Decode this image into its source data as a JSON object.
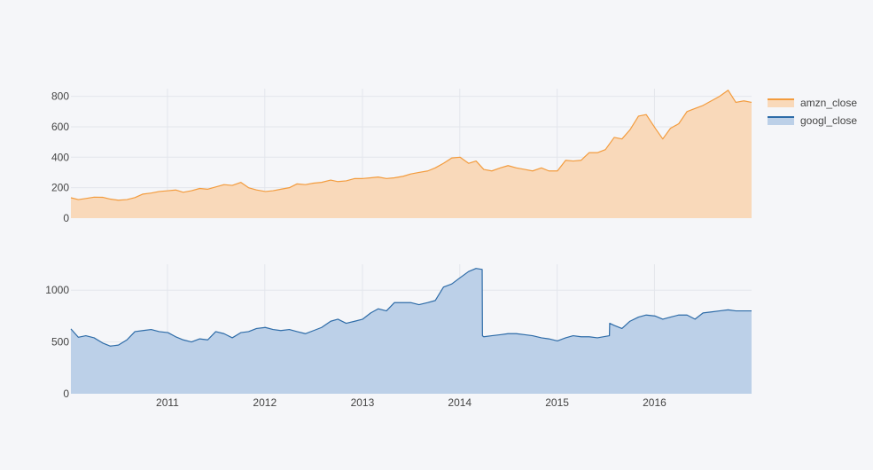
{
  "chart_data": {
    "type": "area",
    "background": "#F5F6F9",
    "grid": true,
    "legend_position": "top-right",
    "shared_x": {
      "range": [
        "2010-01-04",
        "2016-12-30"
      ],
      "tick_values": [
        "2011-01-01",
        "2012-01-01",
        "2013-01-01",
        "2014-01-01",
        "2015-01-01",
        "2016-01-01"
      ],
      "tick_labels": [
        "2011",
        "2012",
        "2013",
        "2014",
        "2015",
        "2016"
      ]
    },
    "subplots": [
      {
        "series": {
          "name": "amzn_close",
          "line_color": "#F39C3E",
          "fill_color": "#F9D9BA",
          "x": [
            "2010-01-04",
            "2010-02-01",
            "2010-03-01",
            "2010-04-01",
            "2010-05-03",
            "2010-06-01",
            "2010-07-01",
            "2010-08-02",
            "2010-09-01",
            "2010-10-01",
            "2010-11-01",
            "2010-12-01",
            "2011-01-03",
            "2011-02-01",
            "2011-03-01",
            "2011-04-01",
            "2011-05-02",
            "2011-06-01",
            "2011-07-01",
            "2011-08-01",
            "2011-09-01",
            "2011-10-03",
            "2011-11-01",
            "2011-12-01",
            "2012-01-03",
            "2012-02-01",
            "2012-03-01",
            "2012-04-02",
            "2012-05-01",
            "2012-06-01",
            "2012-07-02",
            "2012-08-01",
            "2012-09-04",
            "2012-10-01",
            "2012-11-01",
            "2012-12-03",
            "2013-01-02",
            "2013-02-01",
            "2013-03-01",
            "2013-04-01",
            "2013-05-01",
            "2013-06-03",
            "2013-07-01",
            "2013-08-01",
            "2013-09-03",
            "2013-10-01",
            "2013-11-01",
            "2013-12-02",
            "2014-01-02",
            "2014-02-03",
            "2014-03-03",
            "2014-04-01",
            "2014-05-01",
            "2014-06-02",
            "2014-07-01",
            "2014-08-01",
            "2014-09-02",
            "2014-10-01",
            "2014-11-03",
            "2014-12-01",
            "2015-01-02",
            "2015-02-02",
            "2015-03-02",
            "2015-04-01",
            "2015-05-01",
            "2015-06-01",
            "2015-07-01",
            "2015-08-03",
            "2015-09-01",
            "2015-10-01",
            "2015-11-02",
            "2015-12-01",
            "2016-01-04",
            "2016-02-01",
            "2016-03-01",
            "2016-04-01",
            "2016-05-02",
            "2016-06-01",
            "2016-07-01",
            "2016-08-01",
            "2016-09-01",
            "2016-10-03",
            "2016-11-01",
            "2016-12-01",
            "2016-12-30"
          ],
          "y": [
            134,
            122,
            129,
            138,
            137,
            125,
            118,
            122,
            135,
            158,
            165,
            175,
            180,
            185,
            170,
            180,
            195,
            190,
            205,
            220,
            215,
            235,
            200,
            185,
            175,
            180,
            190,
            200,
            225,
            220,
            230,
            235,
            250,
            240,
            245,
            260,
            260,
            265,
            270,
            260,
            265,
            275,
            290,
            300,
            310,
            330,
            360,
            395,
            400,
            360,
            375,
            320,
            310,
            330,
            345,
            330,
            320,
            310,
            330,
            310,
            310,
            380,
            375,
            380,
            430,
            430,
            450,
            530,
            520,
            580,
            670,
            680,
            590,
            520,
            590,
            620,
            700,
            720,
            740,
            770,
            800,
            840,
            760,
            770,
            760
          ]
        },
        "y_range": [
          0,
          850
        ],
        "y_tick_values": [
          0,
          200,
          400,
          600,
          800
        ],
        "y_tick_labels": [
          "0",
          "200",
          "400",
          "600",
          "800"
        ]
      },
      {
        "series": {
          "name": "googl_close",
          "line_color": "#2E6CA8",
          "fill_color": "#BCD0E8",
          "x": [
            "2010-01-04",
            "2010-02-01",
            "2010-03-01",
            "2010-04-01",
            "2010-05-03",
            "2010-06-01",
            "2010-07-01",
            "2010-08-02",
            "2010-09-01",
            "2010-10-01",
            "2010-11-01",
            "2010-12-01",
            "2011-01-03",
            "2011-02-01",
            "2011-03-01",
            "2011-04-01",
            "2011-05-02",
            "2011-06-01",
            "2011-07-01",
            "2011-08-01",
            "2011-09-01",
            "2011-10-03",
            "2011-11-01",
            "2011-12-01",
            "2012-01-03",
            "2012-02-01",
            "2012-03-01",
            "2012-04-02",
            "2012-05-01",
            "2012-06-01",
            "2012-07-02",
            "2012-08-01",
            "2012-09-04",
            "2012-10-01",
            "2012-11-01",
            "2012-12-03",
            "2013-01-02",
            "2013-02-01",
            "2013-03-01",
            "2013-04-01",
            "2013-05-01",
            "2013-06-03",
            "2013-07-01",
            "2013-08-01",
            "2013-09-03",
            "2013-10-01",
            "2013-11-01",
            "2013-12-02",
            "2014-01-02",
            "2014-02-03",
            "2014-03-03",
            "2014-03-26",
            "2014-03-27",
            "2014-04-01",
            "2014-05-01",
            "2014-06-02",
            "2014-07-01",
            "2014-08-01",
            "2014-09-02",
            "2014-10-01",
            "2014-11-03",
            "2014-12-01",
            "2015-01-02",
            "2015-02-02",
            "2015-03-02",
            "2015-04-01",
            "2015-05-01",
            "2015-06-01",
            "2015-07-16",
            "2015-07-17",
            "2015-08-03",
            "2015-09-01",
            "2015-10-01",
            "2015-11-02",
            "2015-12-01",
            "2016-01-04",
            "2016-02-01",
            "2016-03-01",
            "2016-04-01",
            "2016-05-02",
            "2016-06-01",
            "2016-07-01",
            "2016-08-01",
            "2016-09-01",
            "2016-10-03",
            "2016-11-01",
            "2016-12-01",
            "2016-12-30"
          ],
          "y": [
            626,
            545,
            560,
            540,
            490,
            460,
            470,
            520,
            600,
            610,
            620,
            600,
            590,
            550,
            520,
            500,
            530,
            520,
            600,
            580,
            540,
            590,
            600,
            630,
            640,
            620,
            610,
            620,
            600,
            580,
            610,
            640,
            700,
            720,
            680,
            700,
            720,
            780,
            820,
            800,
            880,
            880,
            880,
            860,
            880,
            900,
            1030,
            1060,
            1120,
            1180,
            1210,
            1200,
            560,
            550,
            560,
            570,
            580,
            580,
            570,
            560,
            540,
            530,
            510,
            540,
            560,
            550,
            550,
            540,
            560,
            680,
            660,
            630,
            700,
            740,
            760,
            750,
            720,
            740,
            760,
            760,
            720,
            780,
            790,
            800,
            810,
            800,
            800,
            800
          ]
        },
        "y_range": [
          0,
          1250
        ],
        "y_tick_values": [
          0,
          500,
          1000
        ],
        "y_tick_labels": [
          "0",
          "500",
          "1000"
        ]
      }
    ]
  },
  "legend": {
    "items": [
      {
        "label": "amzn_close",
        "line_color": "#F39C3E",
        "fill_color": "#F9D9BA"
      },
      {
        "label": "googl_close",
        "line_color": "#2E6CA8",
        "fill_color": "#BCD0E8"
      }
    ]
  }
}
